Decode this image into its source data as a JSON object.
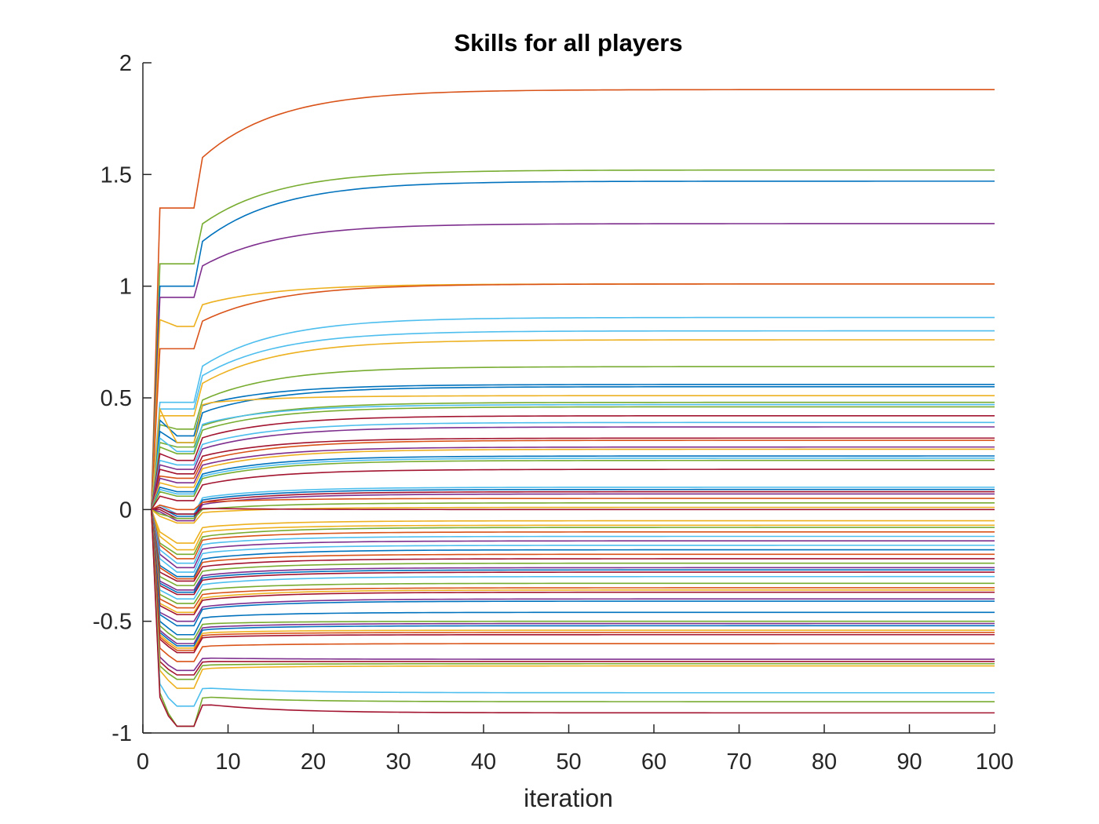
{
  "chart_data": {
    "type": "line",
    "title": "Skills for all players",
    "xlabel": "iteration",
    "ylabel": "",
    "xlim": [
      0,
      100
    ],
    "ylim": [
      -1,
      2
    ],
    "xticks": [
      0,
      10,
      20,
      30,
      40,
      50,
      60,
      70,
      80,
      90,
      100
    ],
    "xtick_labels": [
      "0",
      "10",
      "20",
      "30",
      "40",
      "50",
      "60",
      "70",
      "80",
      "90",
      "100"
    ],
    "yticks": [
      -1,
      -0.5,
      0,
      0.5,
      1,
      1.5,
      2
    ],
    "ytick_labels": [
      "-1",
      "-0.5",
      "0",
      "0.5",
      "1",
      "1.5",
      "2"
    ],
    "grid": false,
    "legend": "none",
    "palette": [
      "#0072BD",
      "#D95319",
      "#EDB120",
      "#7E2F8E",
      "#77AC30",
      "#4DBEEE",
      "#A2142F"
    ],
    "series": [
      {
        "color": "#D95319",
        "final": 1.88,
        "start2": 1.35,
        "min": 1.35
      },
      {
        "color": "#77AC30",
        "final": 1.52,
        "start2": 1.1,
        "min": 1.1
      },
      {
        "color": "#0072BD",
        "final": 1.47,
        "start2": 1.0,
        "min": 1.0
      },
      {
        "color": "#7E2F8E",
        "final": 1.28,
        "start2": 0.95,
        "min": 0.95
      },
      {
        "color": "#EDB120",
        "final": 1.01,
        "start2": 0.85,
        "min": 0.82
      },
      {
        "color": "#D95319",
        "final": 1.01,
        "start2": 0.72,
        "min": 0.72
      },
      {
        "color": "#4DBEEE",
        "final": 0.86,
        "start2": 0.48,
        "min": 0.48
      },
      {
        "color": "#4DBEEE",
        "final": 0.8,
        "start2": 0.45,
        "min": 0.45
      },
      {
        "color": "#EDB120",
        "final": 0.76,
        "start2": 0.42,
        "min": 0.42
      },
      {
        "color": "#77AC30",
        "final": 0.64,
        "start2": 0.38,
        "min": 0.36
      },
      {
        "color": "#0072BD",
        "final": 0.56,
        "start2": 0.4,
        "min": 0.33
      },
      {
        "color": "#0072BD",
        "final": 0.55,
        "start2": 0.35,
        "min": 0.3
      },
      {
        "color": "#EDB120",
        "final": 0.51,
        "start2": 0.45,
        "min": 0.3
      },
      {
        "color": "#77AC30",
        "final": 0.48,
        "start2": 0.3,
        "min": 0.28
      },
      {
        "color": "#4DBEEE",
        "final": 0.47,
        "start2": 0.32,
        "min": 0.26
      },
      {
        "color": "#77AC30",
        "final": 0.46,
        "start2": 0.28,
        "min": 0.25
      },
      {
        "color": "#A2142F",
        "final": 0.42,
        "start2": 0.25,
        "min": 0.22
      },
      {
        "color": "#4DBEEE",
        "final": 0.39,
        "start2": 0.22,
        "min": 0.2
      },
      {
        "color": "#7E2F8E",
        "final": 0.37,
        "start2": 0.2,
        "min": 0.18
      },
      {
        "color": "#A2142F",
        "final": 0.32,
        "start2": 0.18,
        "min": 0.16
      },
      {
        "color": "#D95319",
        "final": 0.31,
        "start2": 0.15,
        "min": 0.14
      },
      {
        "color": "#7E2F8E",
        "final": 0.28,
        "start2": 0.14,
        "min": 0.12
      },
      {
        "color": "#EDB120",
        "final": 0.27,
        "start2": 0.12,
        "min": 0.1
      },
      {
        "color": "#0072BD",
        "final": 0.24,
        "start2": 0.1,
        "min": 0.08
      },
      {
        "color": "#4DBEEE",
        "final": 0.23,
        "start2": 0.09,
        "min": 0.07
      },
      {
        "color": "#77AC30",
        "final": 0.22,
        "start2": 0.08,
        "min": 0.06
      },
      {
        "color": "#A2142F",
        "final": 0.18,
        "start2": 0.06,
        "min": 0.04
      },
      {
        "color": "#4DBEEE",
        "final": 0.1,
        "start2": 0.02,
        "min": -0.02
      },
      {
        "color": "#0072BD",
        "final": 0.09,
        "start2": 0.01,
        "min": -0.03
      },
      {
        "color": "#A2142F",
        "final": 0.08,
        "start2": 0.0,
        "min": -0.04
      },
      {
        "color": "#7E2F8E",
        "final": 0.07,
        "start2": -0.01,
        "min": -0.05
      },
      {
        "color": "#D95319",
        "final": 0.05,
        "start2": 0.02,
        "min": 0.0
      },
      {
        "color": "#77AC30",
        "final": 0.03,
        "start2": -0.02,
        "min": -0.04
      },
      {
        "color": "#EDB120",
        "final": 0.01,
        "start2": -0.03,
        "min": -0.06
      },
      {
        "color": "#A2142F",
        "final": 0.0,
        "start2": 0.01,
        "min": -0.02
      },
      {
        "color": "#EDB120",
        "final": -0.05,
        "start2": -0.1,
        "min": -0.15
      },
      {
        "color": "#EDB120",
        "final": -0.07,
        "start2": -0.12,
        "min": -0.18
      },
      {
        "color": "#77AC30",
        "final": -0.08,
        "start2": -0.15,
        "min": -0.2
      },
      {
        "color": "#D95319",
        "final": -0.1,
        "start2": -0.16,
        "min": -0.22
      },
      {
        "color": "#4DBEEE",
        "final": -0.12,
        "start2": -0.18,
        "min": -0.24
      },
      {
        "color": "#7E2F8E",
        "final": -0.14,
        "start2": -0.2,
        "min": -0.26
      },
      {
        "color": "#4DBEEE",
        "final": -0.16,
        "start2": -0.22,
        "min": -0.28
      },
      {
        "color": "#0072BD",
        "final": -0.18,
        "start2": -0.25,
        "min": -0.3
      },
      {
        "color": "#D95319",
        "final": -0.2,
        "start2": -0.26,
        "min": -0.31
      },
      {
        "color": "#A2142F",
        "final": -0.22,
        "start2": -0.28,
        "min": -0.32
      },
      {
        "color": "#77AC30",
        "final": -0.24,
        "start2": -0.3,
        "min": -0.34
      },
      {
        "color": "#7E2F8E",
        "final": -0.26,
        "start2": -0.32,
        "min": -0.36
      },
      {
        "color": "#0072BD",
        "final": -0.27,
        "start2": -0.33,
        "min": -0.37
      },
      {
        "color": "#A2142F",
        "final": -0.28,
        "start2": -0.34,
        "min": -0.38
      },
      {
        "color": "#4DBEEE",
        "final": -0.3,
        "start2": -0.36,
        "min": -0.4
      },
      {
        "color": "#77AC30",
        "final": -0.33,
        "start2": -0.38,
        "min": -0.42
      },
      {
        "color": "#D95319",
        "final": -0.35,
        "start2": -0.4,
        "min": -0.44
      },
      {
        "color": "#EDB120",
        "final": -0.36,
        "start2": -0.42,
        "min": -0.46
      },
      {
        "color": "#A2142F",
        "final": -0.37,
        "start2": -0.43,
        "min": -0.47
      },
      {
        "color": "#7E2F8E",
        "final": -0.4,
        "start2": -0.46,
        "min": -0.5
      },
      {
        "color": "#0072BD",
        "final": -0.41,
        "start2": -0.47,
        "min": -0.52
      },
      {
        "color": "#0072BD",
        "final": -0.46,
        "start2": -0.5,
        "min": -0.56
      },
      {
        "color": "#77AC30",
        "final": -0.5,
        "start2": -0.52,
        "min": -0.58
      },
      {
        "color": "#7E2F8E",
        "final": -0.51,
        "start2": -0.54,
        "min": -0.6
      },
      {
        "color": "#0072BD",
        "final": -0.52,
        "start2": -0.55,
        "min": -0.61
      },
      {
        "color": "#EDB120",
        "final": -0.54,
        "start2": -0.56,
        "min": -0.62
      },
      {
        "color": "#D95319",
        "final": -0.55,
        "start2": -0.57,
        "min": -0.63
      },
      {
        "color": "#A2142F",
        "final": -0.56,
        "start2": -0.58,
        "min": -0.64
      },
      {
        "color": "#D95319",
        "final": -0.6,
        "start2": -0.62,
        "min": -0.68
      },
      {
        "color": "#7E2F8E",
        "final": -0.67,
        "start2": -0.66,
        "min": -0.72
      },
      {
        "color": "#A2142F",
        "final": -0.68,
        "start2": -0.68,
        "min": -0.74
      },
      {
        "color": "#77AC30",
        "final": -0.69,
        "start2": -0.7,
        "min": -0.76
      },
      {
        "color": "#EDB120",
        "final": -0.7,
        "start2": -0.72,
        "min": -0.8
      },
      {
        "color": "#4DBEEE",
        "final": -0.82,
        "start2": -0.78,
        "min": -0.88
      },
      {
        "color": "#77AC30",
        "final": -0.86,
        "start2": -0.82,
        "min": -0.97
      },
      {
        "color": "#A2142F",
        "final": -0.91,
        "start2": -0.84,
        "min": -0.97
      }
    ]
  }
}
